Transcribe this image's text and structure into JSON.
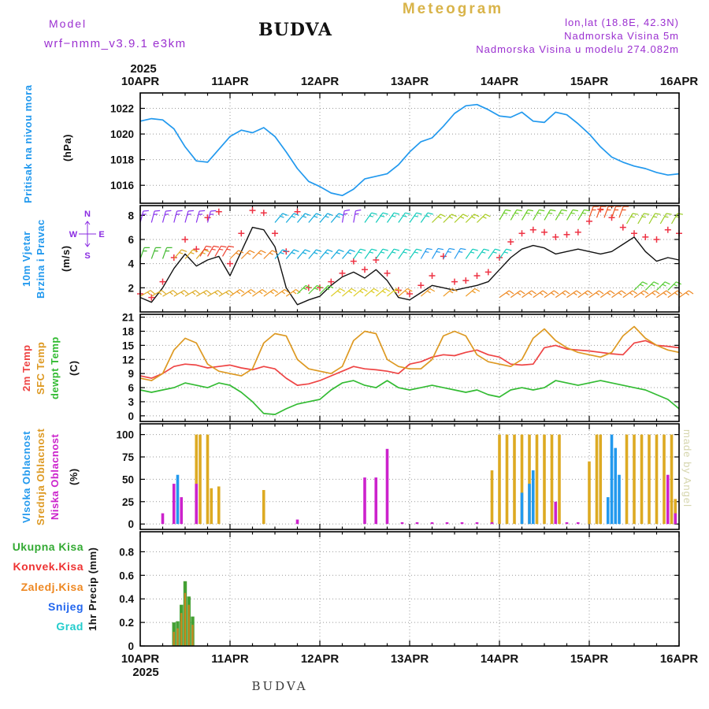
{
  "header": {
    "meteogram_title": "Meteogram",
    "model_label": "Model",
    "model_name": "wrf−nmm_v3.9.1 e3km",
    "station": "BUDVA",
    "lonlat": "lon,lat (18.8E, 42.3N)",
    "elevation_label": "Nadmorska Visina 5m",
    "model_elevation_label": "Nadmorska Visina u modelu 274.082m"
  },
  "watermark": "made by Angel",
  "footer_station": "BUDVA",
  "x_axis": {
    "year_top": "2025",
    "year_bottom": "2025",
    "days": [
      "10APR",
      "11APR",
      "12APR",
      "13APR",
      "14APR",
      "15APR",
      "16APR"
    ],
    "hours_total": 144,
    "day_step_hours": 24,
    "sample_hours": [
      0,
      3,
      6,
      9,
      12,
      15,
      18,
      21,
      24,
      27,
      30,
      33,
      36,
      39,
      42,
      45,
      48,
      51,
      54,
      57,
      60,
      63,
      66,
      69,
      72,
      75,
      78,
      81,
      84,
      87,
      90,
      93,
      96,
      99,
      102,
      105,
      108,
      111,
      114,
      117,
      120,
      123,
      126,
      129,
      132,
      135,
      138,
      141,
      144
    ]
  },
  "panels": {
    "pressure": {
      "title": "Pritisak na nivou mora",
      "unit": "(hPa)",
      "title_color": "#2299ee"
    },
    "wind": {
      "title1": "10m Vjetar",
      "title2": "Brzina i Pravac",
      "unit": "(m/s)",
      "title_color": "#2299ee",
      "compass": {
        "n": "N",
        "e": "E",
        "s": "S",
        "w": "W",
        "color": "#8a2be2"
      }
    },
    "temp": {
      "labels": [
        {
          "text": "2m Temp",
          "color": "#ee4444"
        },
        {
          "text": "SFC Temp",
          "color": "#dd9922"
        },
        {
          "text": "dewpt Temp",
          "color": "#33bb33"
        }
      ],
      "unit": "(C)"
    },
    "cloud": {
      "labels": [
        {
          "text": "Vlsoka Oblacnost",
          "color": "#2299ee"
        },
        {
          "text": "Srednja Oblacnost",
          "color": "#dd9922"
        },
        {
          "text": "Niska Oblacnost",
          "color": "#cc22cc"
        }
      ],
      "unit": "(%)"
    },
    "precip": {
      "legend": [
        {
          "text": "Ukupna Kisa",
          "color": "#33aa33"
        },
        {
          "text": "Konvek.Kisa",
          "color": "#ee3333"
        },
        {
          "text": "Zaledj.Kisa",
          "color": "#ee8822"
        },
        {
          "text": "Snijeg",
          "color": "#2266ee"
        },
        {
          "text": "Grad",
          "color": "#22cccc"
        }
      ],
      "unit": "1hr Precip (mm)"
    }
  },
  "chart_data": [
    {
      "id": "pressure",
      "type": "line",
      "title": "Pritisak na nivou mora",
      "ylabel": "(hPa)",
      "ylim": [
        1014.6,
        1023.2
      ],
      "yticks": [
        1016,
        1018,
        1020,
        1022
      ],
      "series": [
        {
          "name": "Pritisak na nivou mora",
          "color": "#2299ee",
          "values": [
            1021.0,
            1021.2,
            1021.1,
            1020.4,
            1019.0,
            1017.9,
            1017.8,
            1018.8,
            1019.8,
            1020.3,
            1020.1,
            1020.5,
            1019.8,
            1018.6,
            1017.3,
            1016.3,
            1015.9,
            1015.4,
            1015.2,
            1015.7,
            1016.5,
            1016.7,
            1016.9,
            1017.6,
            1018.6,
            1019.4,
            1019.7,
            1020.6,
            1021.6,
            1022.2,
            1022.3,
            1021.9,
            1021.4,
            1021.3,
            1021.7,
            1021.0,
            1020.9,
            1021.7,
            1021.5,
            1020.8,
            1020.0,
            1019.0,
            1018.2,
            1017.8,
            1017.5,
            1017.3,
            1017.0,
            1016.8,
            1016.9
          ]
        }
      ]
    },
    {
      "id": "wind",
      "type": "line",
      "title": "10m Vjetar Brzina i Pravac",
      "ylabel": "(m/s)",
      "ylim": [
        0,
        8.8
      ],
      "yticks": [
        2,
        4,
        6,
        8
      ],
      "series": [
        {
          "name": "Brzina 10m",
          "color": "#111111",
          "width": 1.4,
          "values": [
            1.2,
            0.8,
            2.0,
            3.6,
            4.8,
            3.8,
            4.3,
            4.6,
            3.0,
            5.0,
            7.0,
            6.8,
            5.4,
            2.0,
            0.6,
            1.0,
            1.3,
            2.2,
            2.9,
            3.3,
            2.8,
            3.5,
            2.6,
            1.2,
            1.0,
            1.6,
            2.2,
            2.0,
            1.8,
            2.0,
            2.2,
            2.5,
            3.5,
            4.5,
            5.2,
            5.5,
            5.3,
            4.8,
            5.0,
            5.2,
            5.0,
            4.8,
            5.0,
            5.6,
            6.2,
            5.0,
            4.2,
            4.5,
            4.3
          ]
        },
        {
          "name": "Udari vjetra",
          "color": "#ee3344",
          "marker": "plus",
          "values": [
            1.5,
            1.2,
            2.5,
            4.5,
            6.0,
            5.2,
            7.8,
            8.3,
            4.0,
            6.5,
            8.4,
            8.2,
            6.5,
            5.0,
            8.3,
            2.0,
            2.0,
            2.5,
            3.2,
            4.2,
            3.5,
            4.3,
            3.2,
            1.8,
            1.5,
            2.2,
            3.0,
            4.6,
            2.5,
            2.6,
            3.0,
            3.3,
            4.5,
            5.8,
            6.5,
            6.8,
            6.6,
            6.2,
            6.4,
            6.6,
            7.5,
            8.5,
            7.8,
            7.0,
            6.5,
            6.2,
            6.0,
            6.8,
            6.5
          ]
        }
      ],
      "barb_rows": [
        {
          "y": 7.4,
          "h0": 0,
          "h1": 18,
          "step": 3,
          "angle": 15,
          "color": "#8833ee"
        },
        {
          "y": 7.4,
          "h0": 36,
          "h1": 52,
          "step": 3,
          "angle": 40,
          "color": "#11aadd"
        },
        {
          "y": 7.4,
          "h0": 54,
          "h1": 58,
          "step": 3,
          "angle": 10,
          "color": "#8833ee"
        },
        {
          "y": 7.4,
          "h0": 60,
          "h1": 76,
          "step": 3,
          "angle": 35,
          "color": "#11ccbb"
        },
        {
          "y": 7.4,
          "h0": 78,
          "h1": 92,
          "step": 3,
          "angle": 45,
          "color": "#aacc22"
        },
        {
          "y": 7.6,
          "h0": 96,
          "h1": 118,
          "step": 3,
          "angle": 30,
          "color": "#66cc22"
        },
        {
          "y": 7.8,
          "h0": 120,
          "h1": 128,
          "step": 2,
          "angle": 20,
          "color": "#ee5522"
        },
        {
          "y": 7.3,
          "h0": 130,
          "h1": 144,
          "step": 3,
          "angle": 30,
          "color": "#99cc22"
        },
        {
          "y": 4.4,
          "h0": 0,
          "h1": 6,
          "step": 3,
          "angle": 20,
          "color": "#44bb33"
        },
        {
          "y": 4.4,
          "h0": 9,
          "h1": 15,
          "step": 3,
          "angle": 40,
          "color": "#ddaa22"
        },
        {
          "y": 4.6,
          "h0": 16,
          "h1": 22,
          "step": 2,
          "angle": 30,
          "color": "#ee4433"
        },
        {
          "y": 4.4,
          "h0": 24,
          "h1": 33,
          "step": 3,
          "angle": 45,
          "color": "#ee8822"
        },
        {
          "y": 4.4,
          "h0": 36,
          "h1": 54,
          "step": 3,
          "angle": 40,
          "color": "#11aadd"
        },
        {
          "y": 4.4,
          "h0": 57,
          "h1": 72,
          "step": 3,
          "angle": 35,
          "color": "#11ccbb"
        },
        {
          "y": 4.4,
          "h0": 75,
          "h1": 84,
          "step": 3,
          "angle": 30,
          "color": "#2299ee"
        },
        {
          "y": 4.4,
          "h0": 87,
          "h1": 96,
          "step": 3,
          "angle": 35,
          "color": "#11ccbb"
        },
        {
          "y": 1.3,
          "h0": 0,
          "h1": 21,
          "step": 3,
          "angle": 60,
          "color": "#ddaa22"
        },
        {
          "y": 1.3,
          "h0": 24,
          "h1": 40,
          "step": 3,
          "angle": 55,
          "color": "#ee9922"
        },
        {
          "y": 1.5,
          "h0": 42,
          "h1": 48,
          "step": 3,
          "angle": 45,
          "color": "#55cc33"
        },
        {
          "y": 1.3,
          "h0": 51,
          "h1": 66,
          "step": 3,
          "angle": 50,
          "color": "#ddcc22"
        },
        {
          "y": 1.3,
          "h0": 69,
          "h1": 90,
          "step": 6,
          "angle": 50,
          "color": "#ee9922"
        },
        {
          "y": 1.2,
          "h0": 96,
          "h1": 144,
          "step": 3,
          "angle": 55,
          "color": "#ee8822"
        },
        {
          "y": 1.8,
          "h0": 132,
          "h1": 141,
          "step": 3,
          "angle": 45,
          "color": "#55cc33"
        }
      ]
    },
    {
      "id": "temp",
      "type": "line",
      "title": "2m Temp / SFC Temp / dewpt Temp",
      "ylabel": "(C)",
      "ylim": [
        -1.2,
        21.6
      ],
      "yticks": [
        0,
        3,
        6,
        9,
        12,
        15,
        18,
        21
      ],
      "series": [
        {
          "name": "2m Temp",
          "color": "#ee4444",
          "values": [
            8.5,
            8.0,
            9.0,
            10.5,
            11.0,
            10.8,
            10.2,
            10.5,
            10.8,
            10.2,
            9.8,
            10.5,
            10.0,
            8.0,
            6.5,
            6.8,
            7.5,
            8.5,
            9.5,
            10.5,
            10.0,
            9.8,
            9.5,
            9.0,
            11.0,
            11.5,
            12.5,
            13.0,
            12.8,
            13.5,
            14.0,
            13.0,
            12.5,
            11.0,
            10.8,
            11.0,
            14.5,
            15.0,
            14.2,
            14.0,
            13.8,
            13.5,
            13.2,
            13.0,
            15.5,
            16.0,
            15.0,
            14.8,
            14.5
          ]
        },
        {
          "name": "SFC Temp",
          "color": "#dd9922",
          "values": [
            8.0,
            7.5,
            9.0,
            14.0,
            16.5,
            15.5,
            11.0,
            9.5,
            9.0,
            8.5,
            10.0,
            15.5,
            17.5,
            17.0,
            12.0,
            10.0,
            9.5,
            9.0,
            10.5,
            16.0,
            18.0,
            17.5,
            12.0,
            10.5,
            10.0,
            10.0,
            12.0,
            17.0,
            18.0,
            17.0,
            13.0,
            11.5,
            11.0,
            10.5,
            12.0,
            16.5,
            18.5,
            16.0,
            14.5,
            13.5,
            13.0,
            12.5,
            13.5,
            17.0,
            19.0,
            16.5,
            15.0,
            14.0,
            13.5
          ]
        },
        {
          "name": "dewpt Temp",
          "color": "#33bb33",
          "values": [
            5.5,
            5.0,
            5.5,
            6.0,
            7.0,
            6.5,
            6.0,
            7.0,
            6.5,
            5.0,
            3.0,
            0.5,
            0.3,
            1.5,
            2.5,
            3.0,
            3.5,
            5.5,
            7.0,
            7.5,
            6.5,
            6.0,
            7.5,
            6.0,
            5.5,
            6.0,
            6.5,
            6.0,
            5.5,
            5.0,
            5.5,
            4.5,
            4.0,
            5.5,
            6.0,
            5.5,
            6.0,
            7.5,
            7.0,
            6.5,
            7.0,
            7.5,
            7.0,
            6.5,
            6.0,
            5.5,
            4.5,
            3.5,
            1.5
          ]
        }
      ]
    },
    {
      "id": "cloud",
      "type": "bar",
      "title": "Oblacnost",
      "ylabel": "(%)",
      "ylim": [
        -6,
        112
      ],
      "yticks": [
        0,
        25,
        50,
        75,
        100
      ],
      "series_colors": {
        "high": "#2299ee",
        "mid": "#ddaa22",
        "low": "#cc22cc"
      },
      "series_names": {
        "high": "Vlsoka Oblacnost",
        "mid": "Srednja Oblacnost",
        "low": "Niska Oblacnost"
      },
      "bars": [
        {
          "s": "low",
          "h": 6,
          "v": 12
        },
        {
          "s": "low",
          "h": 9,
          "v": 45
        },
        {
          "s": "low",
          "h": 11,
          "v": 30
        },
        {
          "s": "low",
          "h": 15,
          "v": 45
        },
        {
          "s": "high",
          "h": 10,
          "v": 55
        },
        {
          "s": "mid",
          "h": 15,
          "v": 100
        },
        {
          "s": "mid",
          "h": 16,
          "v": 100
        },
        {
          "s": "mid",
          "h": 18,
          "v": 100
        },
        {
          "s": "mid",
          "h": 19,
          "v": 40
        },
        {
          "s": "mid",
          "h": 21,
          "v": 42
        },
        {
          "s": "mid",
          "h": 33,
          "v": 38
        },
        {
          "s": "low",
          "h": 42,
          "v": 5
        },
        {
          "s": "low",
          "h": 60,
          "v": 52
        },
        {
          "s": "low",
          "h": 63,
          "v": 52
        },
        {
          "s": "low",
          "h": 66,
          "v": 84
        },
        {
          "s": "low",
          "h": 70,
          "v": 2
        },
        {
          "s": "low",
          "h": 74,
          "v": 2
        },
        {
          "s": "low",
          "h": 78,
          "v": 2
        },
        {
          "s": "low",
          "h": 82,
          "v": 2
        },
        {
          "s": "low",
          "h": 86,
          "v": 2
        },
        {
          "s": "low",
          "h": 90,
          "v": 2
        },
        {
          "s": "low",
          "h": 94,
          "v": 2
        },
        {
          "s": "mid",
          "h": 94,
          "v": 60
        },
        {
          "s": "mid",
          "h": 96,
          "v": 100
        },
        {
          "s": "mid",
          "h": 98,
          "v": 100
        },
        {
          "s": "mid",
          "h": 100,
          "v": 100
        },
        {
          "s": "mid",
          "h": 102,
          "v": 100
        },
        {
          "s": "mid",
          "h": 104,
          "v": 100
        },
        {
          "s": "mid",
          "h": 106,
          "v": 100
        },
        {
          "s": "mid",
          "h": 108,
          "v": 100
        },
        {
          "s": "mid",
          "h": 110,
          "v": 100
        },
        {
          "s": "mid",
          "h": 112,
          "v": 100
        },
        {
          "s": "high",
          "h": 102,
          "v": 35
        },
        {
          "s": "high",
          "h": 104,
          "v": 45
        },
        {
          "s": "high",
          "h": 105,
          "v": 60
        },
        {
          "s": "low",
          "h": 111,
          "v": 25
        },
        {
          "s": "low",
          "h": 114,
          "v": 2
        },
        {
          "s": "low",
          "h": 117,
          "v": 2
        },
        {
          "s": "mid",
          "h": 120,
          "v": 70
        },
        {
          "s": "mid",
          "h": 122,
          "v": 100
        },
        {
          "s": "mid",
          "h": 123,
          "v": 100
        },
        {
          "s": "high",
          "h": 125,
          "v": 30
        },
        {
          "s": "high",
          "h": 126,
          "v": 100
        },
        {
          "s": "high",
          "h": 127,
          "v": 85
        },
        {
          "s": "high",
          "h": 128,
          "v": 55
        },
        {
          "s": "mid",
          "h": 130,
          "v": 100
        },
        {
          "s": "mid",
          "h": 132,
          "v": 100
        },
        {
          "s": "mid",
          "h": 134,
          "v": 100
        },
        {
          "s": "mid",
          "h": 136,
          "v": 100
        },
        {
          "s": "mid",
          "h": 138,
          "v": 100
        },
        {
          "s": "mid",
          "h": 140,
          "v": 100
        },
        {
          "s": "mid",
          "h": 142,
          "v": 100
        },
        {
          "s": "low",
          "h": 141,
          "v": 55
        },
        {
          "s": "mid",
          "h": 143,
          "v": 28
        },
        {
          "s": "low",
          "h": 143,
          "v": 12
        }
      ]
    },
    {
      "id": "precip",
      "type": "bar",
      "title": "1hr Precip",
      "ylabel": "1hr Precip (mm)",
      "ylim": [
        0,
        0.97
      ],
      "yticks": [
        0,
        0.2,
        0.4,
        0.6,
        0.8
      ],
      "colors": {
        "ukupna": "#44a033",
        "zaledj": "#cc8822"
      },
      "bars": [
        {
          "h": 9,
          "u": 0.2,
          "z": 0.12
        },
        {
          "h": 10,
          "u": 0.21,
          "z": 0.15
        },
        {
          "h": 11,
          "u": 0.35,
          "z": 0.28
        },
        {
          "h": 12,
          "u": 0.55,
          "z": 0.45
        },
        {
          "h": 13,
          "u": 0.42,
          "z": 0.35
        },
        {
          "h": 14,
          "u": 0.25,
          "z": 0.18
        }
      ]
    }
  ]
}
